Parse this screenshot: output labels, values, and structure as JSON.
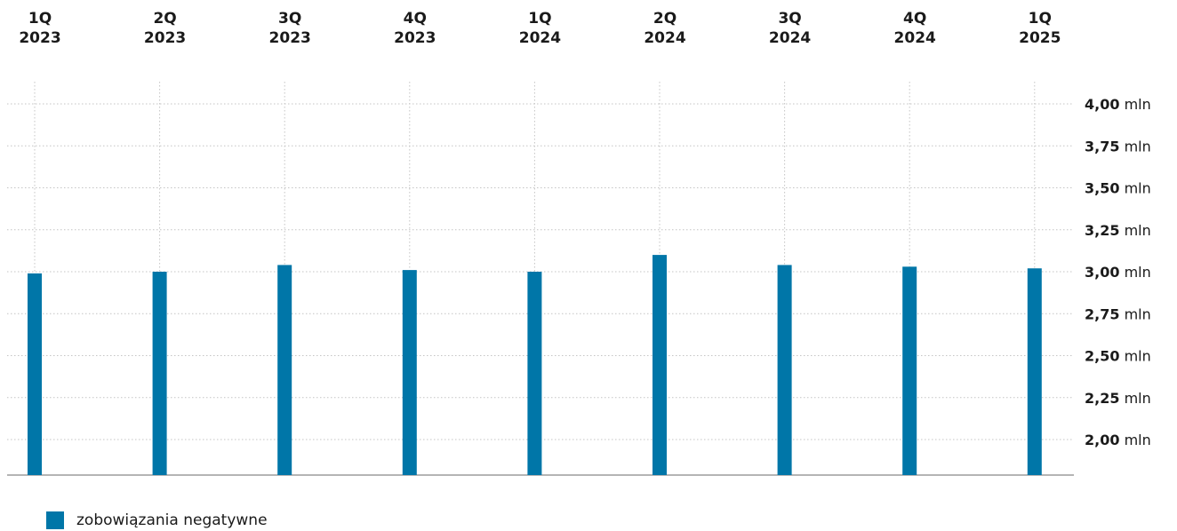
{
  "chart_data": {
    "type": "bar",
    "categories": [
      [
        "1Q",
        "2023"
      ],
      [
        "2Q",
        "2023"
      ],
      [
        "3Q",
        "2023"
      ],
      [
        "4Q",
        "2023"
      ],
      [
        "1Q",
        "2024"
      ],
      [
        "2Q",
        "2024"
      ],
      [
        "3Q",
        "2024"
      ],
      [
        "4Q",
        "2024"
      ],
      [
        "1Q",
        "2025"
      ]
    ],
    "series": [
      {
        "name": "zobowiązania negatywne",
        "color": "#0076a8",
        "values": [
          2.99,
          3.0,
          3.04,
          3.01,
          3.0,
          3.1,
          3.04,
          3.03,
          3.02
        ]
      }
    ],
    "yticks": [
      {
        "value": 4.0,
        "num": "4,00",
        "unit": "mln"
      },
      {
        "value": 3.75,
        "num": "3,75",
        "unit": "mln"
      },
      {
        "value": 3.5,
        "num": "3,50",
        "unit": "mln"
      },
      {
        "value": 3.25,
        "num": "3,25",
        "unit": "mln"
      },
      {
        "value": 3.0,
        "num": "3,00",
        "unit": "mln"
      },
      {
        "value": 2.75,
        "num": "2,75",
        "unit": "mln"
      },
      {
        "value": 2.5,
        "num": "2,50",
        "unit": "mln"
      },
      {
        "value": 2.25,
        "num": "2,25",
        "unit": "mln"
      },
      {
        "value": 2.0,
        "num": "2,00",
        "unit": "mln"
      }
    ],
    "ylim": [
      1.78,
      4.0
    ],
    "grid": true,
    "legend_position": "bottom-left",
    "xaxis_position": "top",
    "yaxis_position": "right"
  },
  "legend": {
    "label": "zobowiązania negatywne"
  }
}
